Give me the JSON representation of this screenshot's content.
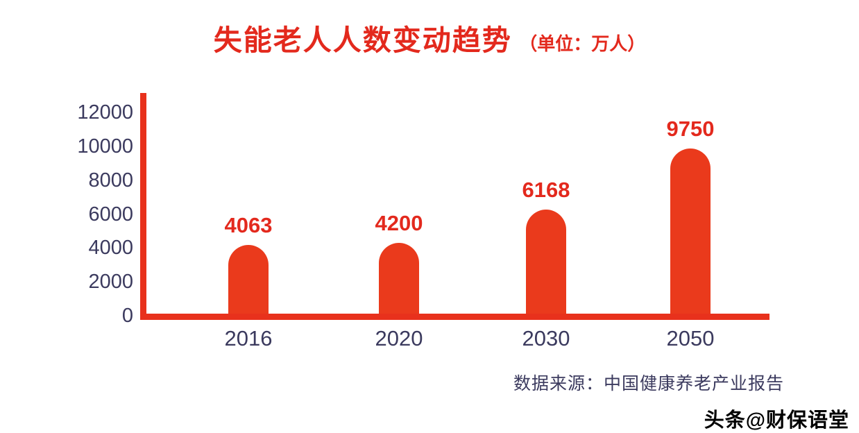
{
  "chart_data": {
    "type": "bar",
    "title": "失能老人人数变动趋势",
    "title_unit": "（单位：万人）",
    "categories": [
      "2016",
      "2020",
      "2030",
      "2050"
    ],
    "values": [
      4063,
      4200,
      6168,
      9750
    ],
    "y_ticks": [
      0,
      2000,
      4000,
      6000,
      8000,
      10000,
      12000
    ],
    "ylim": [
      0,
      13000
    ],
    "xlabel": "",
    "ylabel": "",
    "grid": false,
    "legend": false,
    "source": "数据来源：中国健康养老产业报告",
    "watermark": "头条@财保语堂",
    "colors": {
      "bar": "#ea3a1c",
      "axis": "#e8311c",
      "title": "#e3291d",
      "tick_label": "#3b3a5e"
    }
  }
}
